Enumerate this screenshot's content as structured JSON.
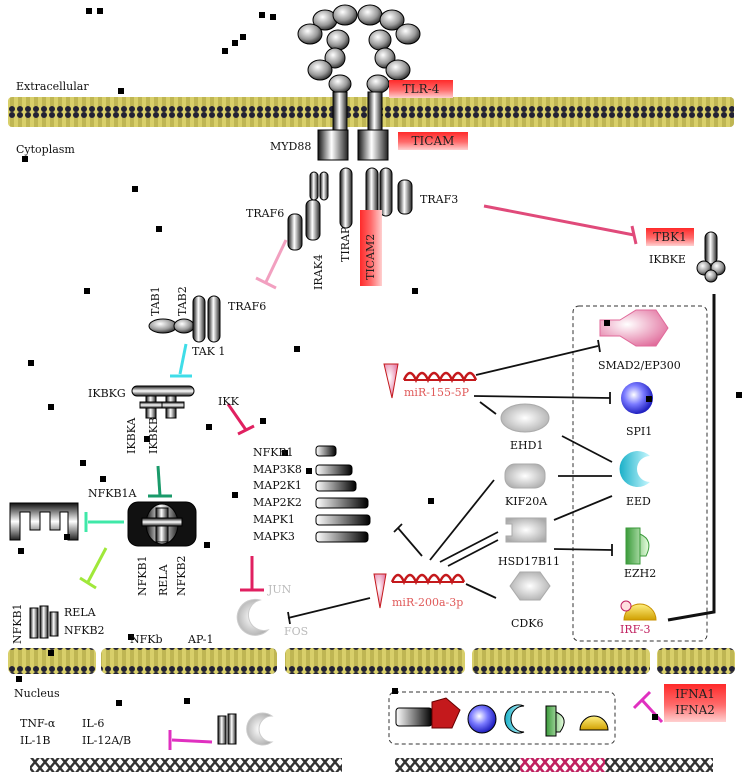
{
  "compartments": {
    "extracellular": "Extracellular",
    "cytoplasm": "Cytoplasm",
    "nucleus": "Nucleus"
  },
  "receptors": {
    "tlr4": "TLR-4",
    "ticam": "TICAM",
    "ticam2": "TICAM2",
    "tbk1": "TBK1"
  },
  "adaptors": {
    "myd88": "MYD88",
    "traf6_top": "TRAF6",
    "irak4": "IRAK4",
    "tirap": "TIRAP",
    "traf3": "TRAF3",
    "ikbke": "IKBKE"
  },
  "tak_complex": {
    "tab1": "TAB1",
    "tab2": "TAB2",
    "traf6": "TRAF6",
    "tak1": "TAK 1"
  },
  "ikk_complex": {
    "ikbkg": "IKBKG",
    "ikbka": "IKBKA",
    "ikbkb": "IKBKB",
    "ikk": "IKK",
    "nfkb1a": "NFKB1A",
    "nfkb1_a": "NFKB1",
    "rela_a": "RELA",
    "nfkb2_a": "NFKB2",
    "nfkb1_b": "NFKB1",
    "rela_b": "RELA",
    "nfkb2_b": "NFKB2"
  },
  "kinase_list": [
    "NFKB1",
    "MAP3K8",
    "MAP2K1",
    "MAP2K2",
    "MAPK1",
    "MAPK3"
  ],
  "ap1": {
    "jun": "JUN",
    "fos": "FOS"
  },
  "mirnas": {
    "mir155": "miR-155-5P",
    "mir200a": "miR-200a-3p"
  },
  "targets": {
    "ehd1": "EHD1",
    "kif20a": "KIF20A",
    "hsd17b11": "HSD17B11",
    "cdk6": "CDK6",
    "smad2": "SMAD2/EP300",
    "spi1": "SPI1",
    "eed": "EED",
    "ezh2": "EZH2",
    "irf3": "IRF-3"
  },
  "nuclear": {
    "nfkb": "NFKb",
    "ap1": "AP-1",
    "tnf": "TNF-α",
    "il1b": "IL-1B",
    "il6": "IL-6",
    "il12": "IL-12A/B",
    "ifna1": "IFNA1",
    "ifna2": "IFNA2"
  },
  "colors": {
    "membrane_gold": "#d8cf6a",
    "inhibit_pink": "#e04a7a",
    "inhibit_cyan": "#3fdde8",
    "inhibit_green": "#1a9a6a",
    "inhibit_lime": "#a0e83a",
    "inhibit_magenta": "#e030c0",
    "mirna_red": "#c4191c",
    "label_box_red": "#ff3030",
    "dna_pink": "#d0306a"
  }
}
